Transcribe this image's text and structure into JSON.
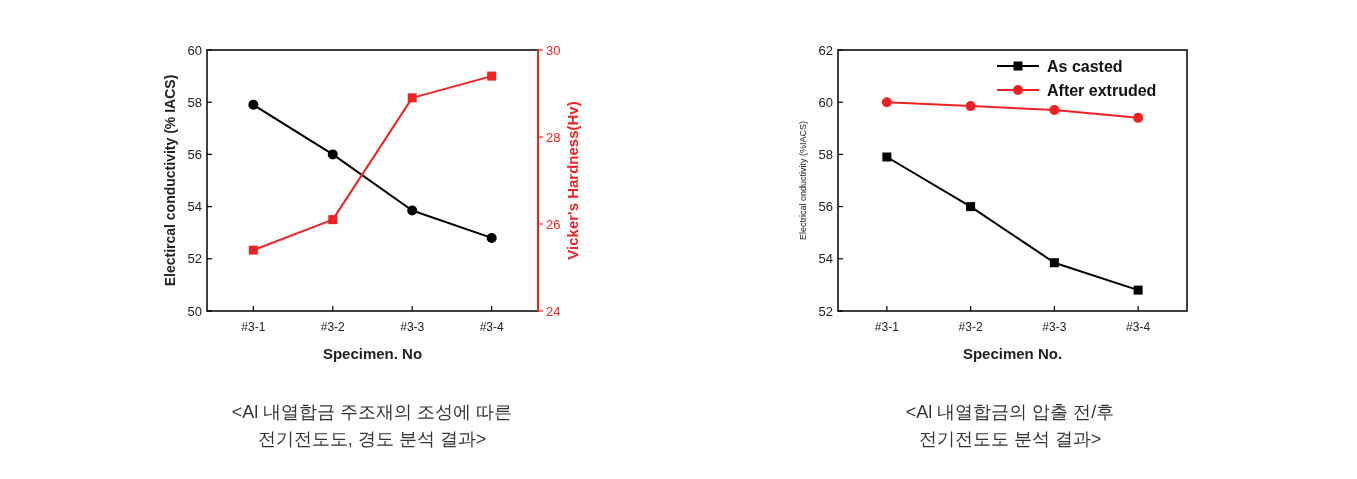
{
  "chart_data": [
    {
      "type": "line",
      "categories": [
        "#3-1",
        "#3-2",
        "#3-3",
        "#3-4"
      ],
      "xlabel": "Specimen. No",
      "ylabel": "Electircal conductivity (% IACS)",
      "y2label": "Vicker's Hardness(Hv)",
      "ylim": [
        50,
        60
      ],
      "yticks": [
        50,
        52,
        54,
        56,
        58,
        60
      ],
      "y2lim": [
        24,
        30
      ],
      "y2ticks": [
        24,
        26,
        28,
        30
      ],
      "grid": false,
      "legend": false,
      "series": [
        {
          "color": "#000000",
          "marker": "circle",
          "values": [
            57.9,
            56.0,
            53.85,
            52.8
          ]
        },
        {
          "color": "#ee2222",
          "marker": "square",
          "axis": "y2",
          "values": [
            25.4,
            26.1,
            28.9,
            29.4
          ]
        }
      ],
      "annotations": [
        "<Al 내열합금 주조재의 조성에 따른\n전기전도도, 경도 분석 결과>"
      ]
    },
    {
      "type": "line",
      "categories": [
        "#3-1",
        "#3-2",
        "#3-3",
        "#3-4"
      ],
      "xlabel": "Specimen No.",
      "ylabel": "Electrical onductivity (%IACS)",
      "ylim": [
        52,
        62
      ],
      "yticks": [
        52,
        54,
        56,
        58,
        60,
        62
      ],
      "grid": false,
      "legend": "top right",
      "series": [
        {
          "name": "As casted",
          "color": "#000000",
          "marker": "square",
          "values": [
            57.9,
            56.0,
            53.85,
            52.8
          ]
        },
        {
          "name": "After extruded",
          "color": "#ee2222",
          "marker": "circle",
          "values": [
            60.0,
            59.85,
            59.7,
            59.4
          ]
        }
      ],
      "annotations": [
        "<Al 내열합금의 압출 전/후\n전기전도도 분석 결과>"
      ]
    }
  ]
}
